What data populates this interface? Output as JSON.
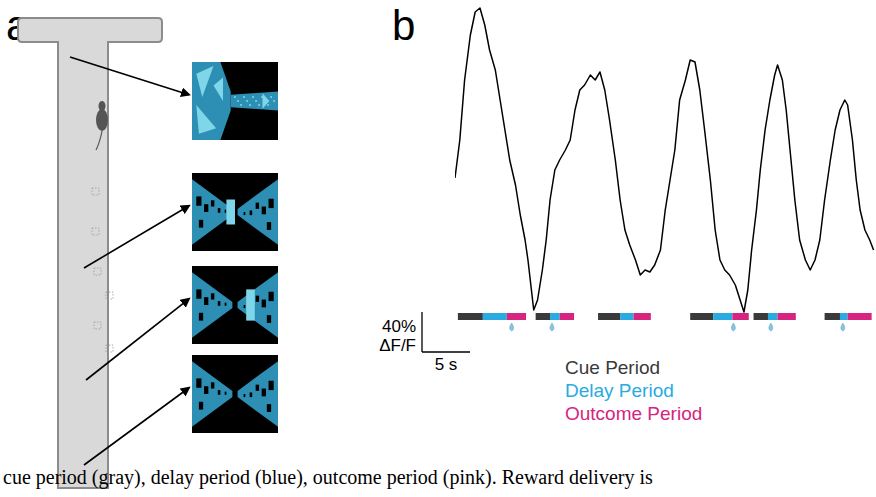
{
  "panel_labels": [
    "a",
    "b"
  ],
  "caption": "cue period (gray), delay period (blue), outcome period (pink). Reward delivery is",
  "chart_data": {
    "type": "line",
    "color": "#000000",
    "tick_labels": false,
    "xlim": [
      0,
      43.8
    ],
    "ylim": [
      -5,
      305
    ],
    "x": [
      0.0,
      0.5,
      1.0,
      1.6,
      2.1,
      2.6,
      3.1,
      3.6,
      4.2,
      4.7,
      5.2,
      5.7,
      6.3,
      6.8,
      7.3,
      7.6,
      7.9,
      8.2,
      8.6,
      9.1,
      9.5,
      9.9,
      10.4,
      10.9,
      11.5,
      12.0,
      12.5,
      13.0,
      13.5,
      14.1,
      14.6,
      15.1,
      15.6,
      16.1,
      16.7,
      17.2,
      17.7,
      18.2,
      18.8,
      19.3,
      19.8,
      20.3,
      20.8,
      21.4,
      21.9,
      22.4,
      22.9,
      23.4,
      24.0,
      24.5,
      25.0,
      25.5,
      26.0,
      26.6,
      27.1,
      27.6,
      28.1,
      28.6,
      29.2,
      29.7,
      30.1,
      30.5,
      30.9,
      31.4,
      31.8,
      32.3,
      32.8,
      33.3,
      33.6,
      34.1,
      34.5,
      34.9,
      35.4,
      35.9,
      36.5,
      37.0,
      37.5,
      38.0,
      38.5,
      39.1,
      39.6,
      40.1,
      40.6,
      40.9,
      41.4,
      41.8,
      42.2,
      42.7,
      43.2,
      43.6
    ],
    "values": [
      132,
      170,
      230,
      275,
      298,
      302,
      285,
      260,
      240,
      210,
      180,
      150,
      125,
      95,
      70,
      50,
      25,
      0,
      10,
      40,
      70,
      110,
      140,
      150,
      160,
      170,
      200,
      220,
      225,
      235,
      230,
      238,
      220,
      190,
      150,
      110,
      80,
      65,
      50,
      35,
      40,
      38,
      45,
      60,
      100,
      130,
      160,
      210,
      230,
      250,
      248,
      220,
      180,
      130,
      80,
      50,
      40,
      35,
      25,
      10,
      -2,
      20,
      60,
      100,
      140,
      180,
      210,
      235,
      245,
      230,
      200,
      160,
      110,
      70,
      50,
      40,
      50,
      70,
      110,
      150,
      180,
      200,
      210,
      205,
      170,
      130,
      100,
      80,
      70,
      60
    ],
    "periods": [
      {
        "name": "Cue Period",
        "color": "#3a3a3a"
      },
      {
        "name": "Delay Period",
        "color": "#29abe2"
      },
      {
        "name": "Outcome Period",
        "color": "#d6247f"
      }
    ],
    "trials": [
      {
        "cue": [
          0.3,
          2.9
        ],
        "delay": [
          2.9,
          5.4
        ],
        "outcome": [
          5.4,
          7.4
        ],
        "reward": 5.9
      },
      {
        "cue": [
          8.4,
          9.9
        ],
        "delay": [
          9.9,
          10.9
        ],
        "outcome": [
          10.9,
          12.4
        ],
        "reward": 10.1
      },
      {
        "cue": [
          14.9,
          17.2
        ],
        "delay": [
          17.2,
          18.6
        ],
        "outcome": [
          18.6,
          20.4
        ],
        "reward": null
      },
      {
        "cue": [
          24.5,
          26.9
        ],
        "delay": [
          26.9,
          28.9
        ],
        "outcome": [
          28.9,
          30.6
        ],
        "reward": 29.0
      },
      {
        "cue": [
          31.1,
          32.6
        ],
        "delay": [
          32.6,
          33.6
        ],
        "outcome": [
          33.6,
          35.5
        ],
        "reward": 32.9
      },
      {
        "cue": [
          38.5,
          40.1
        ],
        "delay": [
          40.1,
          40.9
        ],
        "outcome": [
          40.9,
          43.4
        ],
        "reward": 40.4
      }
    ],
    "scale_bars": {
      "y": {
        "value": 40,
        "label": "40%",
        "unit": "ΔF/F"
      },
      "x": {
        "value": 5,
        "label": "5 s"
      }
    }
  }
}
